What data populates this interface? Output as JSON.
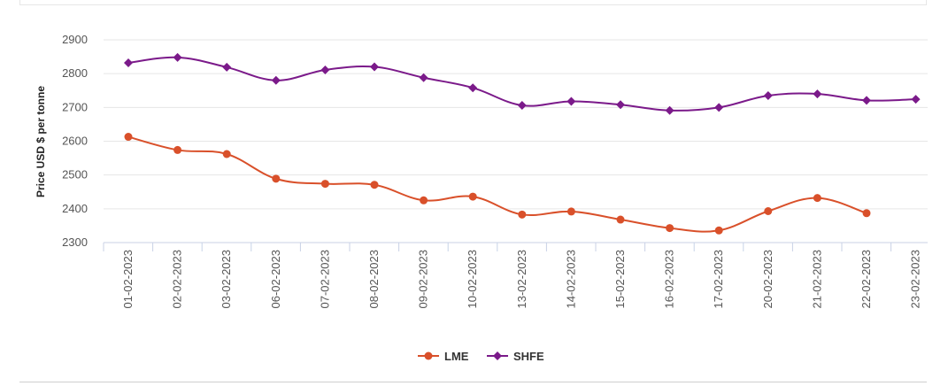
{
  "chart_data": {
    "type": "line",
    "title": "",
    "xlabel": "",
    "ylabel": "Price USD $ per tonne",
    "x": [
      "01-02-2023",
      "02-02-2023",
      "03-02-2023",
      "06-02-2023",
      "07-02-2023",
      "08-02-2023",
      "09-02-2023",
      "10-02-2023",
      "13-02-2023",
      "14-02-2023",
      "15-02-2023",
      "16-02-2023",
      "17-02-2023",
      "20-02-2023",
      "21-02-2023",
      "22-02-2023",
      "23-02-2023"
    ],
    "yticks": [
      2300,
      2400,
      2500,
      2600,
      2700,
      2800,
      2900
    ],
    "ylim": [
      2300,
      2900
    ],
    "grid": true,
    "legend_position": "bottom-center",
    "series": [
      {
        "name": "LME",
        "color": "#d9502a",
        "marker": "circle",
        "values": [
          2613,
          2574,
          2562,
          2489,
          2474,
          2471,
          2425,
          2436,
          2383,
          2392,
          2368,
          2343,
          2336,
          2393,
          2432,
          2387,
          null
        ]
      },
      {
        "name": "SHFE",
        "color": "#7b1a8a",
        "marker": "diamond",
        "values": [
          2832,
          2848,
          2819,
          2780,
          2811,
          2820,
          2788,
          2758,
          2706,
          2718,
          2708,
          2691,
          2700,
          2735,
          2740,
          2721,
          2724
        ]
      }
    ]
  }
}
